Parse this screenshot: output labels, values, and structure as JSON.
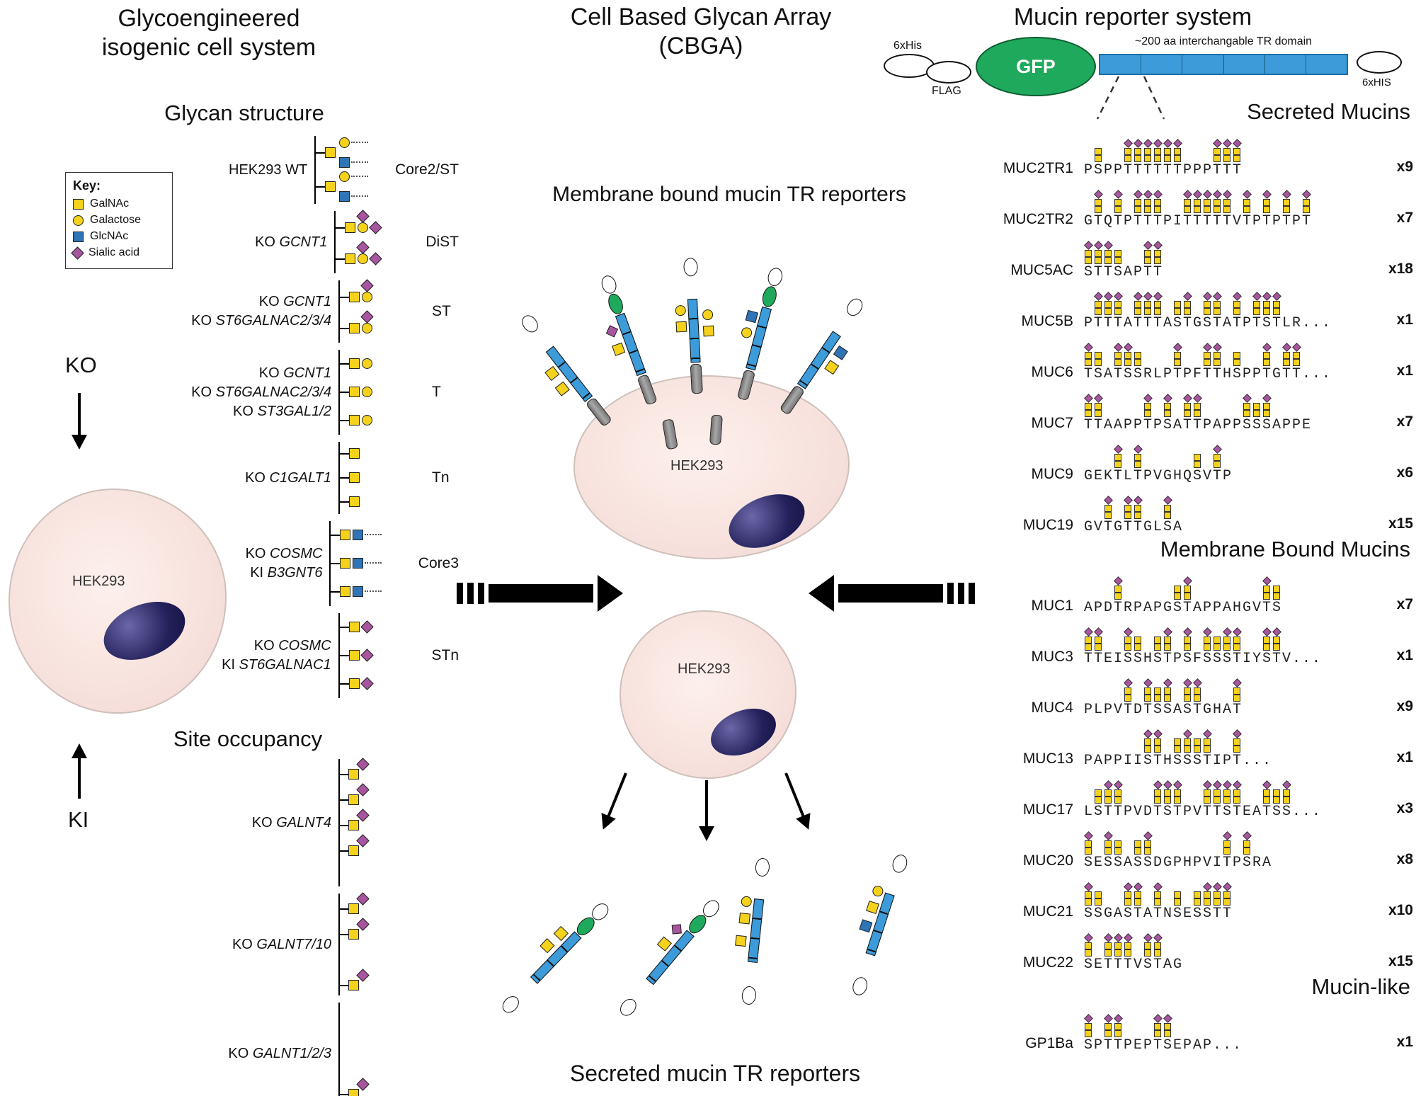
{
  "colors": {
    "yellow": "#F5D21C",
    "blue": "#2E74B6",
    "purple": "#A8559F",
    "trblue": "#3D9BD9",
    "gfpgreen": "#1FA95C"
  },
  "left": {
    "title1": "Glycoengineered",
    "title2": "isogenic cell system",
    "glycan_heading": "Glycan structure",
    "site_heading": "Site occupancy",
    "ko": "KO",
    "ki": "KI",
    "cell": "HEK293",
    "key": {
      "title": "Key:",
      "items": [
        {
          "icon": "galnac-icon",
          "label": "GalNAc"
        },
        {
          "icon": "galactose-icon",
          "label": "Galactose"
        },
        {
          "icon": "glcnac-icon",
          "label": "GlcNAc"
        },
        {
          "icon": "sialic-acid-icon",
          "label": "Sialic acid"
        }
      ]
    },
    "structure_rows": [
      {
        "labels": [
          {
            "prefix": "HEK293 WT",
            "gene": ""
          }
        ],
        "name": "Core2/ST",
        "branches": [
          "core2",
          "core2"
        ]
      },
      {
        "labels": [
          {
            "prefix": "KO ",
            "gene": "GCNT1"
          }
        ],
        "name": "DiST",
        "branches": [
          "dist",
          "dist"
        ]
      },
      {
        "labels": [
          {
            "prefix": "KO ",
            "gene": "GCNT1"
          },
          {
            "prefix": "KO ",
            "gene": "ST6GALNAC2/3/4"
          }
        ],
        "name": "ST",
        "branches": [
          "st",
          "st"
        ]
      },
      {
        "labels": [
          {
            "prefix": "KO ",
            "gene": "GCNT1"
          },
          {
            "prefix": "KO ",
            "gene": "ST6GALNAC2/3/4"
          },
          {
            "prefix": "KO ",
            "gene": "ST3GAL1/2"
          }
        ],
        "name": "T",
        "branches": [
          "t",
          "t",
          "t"
        ]
      },
      {
        "labels": [
          {
            "prefix": "KO ",
            "gene": "C1GALT1"
          }
        ],
        "name": "Tn",
        "branches": [
          "tn",
          "tn",
          "tn"
        ]
      },
      {
        "labels": [
          {
            "prefix": "KO ",
            "gene": "COSMC"
          },
          {
            "prefix": "KI ",
            "gene": "B3GNT6"
          }
        ],
        "name": "Core3",
        "branches": [
          "core3",
          "core3",
          "core3"
        ]
      },
      {
        "labels": [
          {
            "prefix": "KO ",
            "gene": "COSMC"
          },
          {
            "prefix": "KI ",
            "gene": "ST6GALNAC1"
          }
        ],
        "name": "STn",
        "branches": [
          "stn",
          "stn",
          "stn"
        ]
      }
    ],
    "site_rows": [
      {
        "labels": [
          {
            "prefix": "KO ",
            "gene": "GALNT4"
          }
        ],
        "branches": [
          "site",
          "site",
          "site",
          "site",
          "empty"
        ]
      },
      {
        "labels": [
          {
            "prefix": "KO ",
            "gene": "GALNT7/10"
          }
        ],
        "branches": [
          "site",
          "site",
          "empty",
          "site"
        ]
      },
      {
        "labels": [
          {
            "prefix": "KO ",
            "gene": "GALNT1/2/3"
          }
        ],
        "branches": [
          "empty",
          "empty",
          "empty",
          "site"
        ]
      }
    ]
  },
  "middle": {
    "title1": "Cell Based Glycan Array",
    "title2": "(CBGA)",
    "membrane_heading": "Membrane bound mucin TR reporters",
    "secreted_heading": "Secreted mucin TR reporters",
    "cell": "HEK293"
  },
  "right": {
    "title": "Mucin reporter system",
    "construct": {
      "his1": "6xHis",
      "flag": "FLAG",
      "gfp": "GFP",
      "tr": "~200 aa interchangable TR domain",
      "his2": "6xHIS"
    },
    "sections": [
      {
        "heading": "Secreted Mucins",
        "rows": [
          {
            "name": "MUC2TR1",
            "seq": "PSPPTTTTTTPPPTTT",
            "count": "x9"
          },
          {
            "name": "MUC2TR2",
            "seq": "GTQTPTTTPITTTTTVTPTPTPT",
            "count": "x7"
          },
          {
            "name": "MUC5AC",
            "seq": "STTSAPTT",
            "count": "x18"
          },
          {
            "name": "MUC5B",
            "seq": "PTTTATTTASTGSTATPTSTLR...",
            "count": "x1"
          },
          {
            "name": "MUC6",
            "seq": "TSATSSRLPTPFTTHSPPTGTT...",
            "count": "x1"
          },
          {
            "name": "MUC7",
            "seq": "TTAAPPTPSATTPAPPSSSAPPE",
            "count": "x7"
          },
          {
            "name": "MUC9",
            "seq": "GEKTLTPVGHQSVTP",
            "count": "x6"
          },
          {
            "name": "MUC19",
            "seq": "GVTGTTGLSA",
            "count": "x15"
          }
        ]
      },
      {
        "heading": "Membrane Bound Mucins",
        "rows": [
          {
            "name": "MUC1",
            "seq": "APDTRPAPGSTAPPAHGVTS",
            "count": "x7"
          },
          {
            "name": "MUC3",
            "seq": "TTEISSHSTPSFSSSTIYSTV...",
            "count": "x1"
          },
          {
            "name": "MUC4",
            "seq": "PLPVTDTSSASTGHAT",
            "count": "x9"
          },
          {
            "name": "MUC13",
            "seq": "PAPPIISTHSSSTIPT...",
            "count": "x1"
          },
          {
            "name": "MUC17",
            "seq": "LSTTPVDTSTPVTTSTEATSS...",
            "count": "x3"
          },
          {
            "name": "MUC20",
            "seq": "SESSASSDGPHPVITPSRA",
            "count": "x8"
          },
          {
            "name": "MUC21",
            "seq": "SSGASTATNSESSTT",
            "count": "x10"
          },
          {
            "name": "MUC22",
            "seq": "SETTTVSTAG",
            "count": "x15"
          }
        ]
      },
      {
        "heading": "Mucin-like",
        "rows": [
          {
            "name": "GP1Ba",
            "seq": "SPTTPEPTSEPAP...",
            "count": "x1"
          }
        ]
      }
    ]
  }
}
